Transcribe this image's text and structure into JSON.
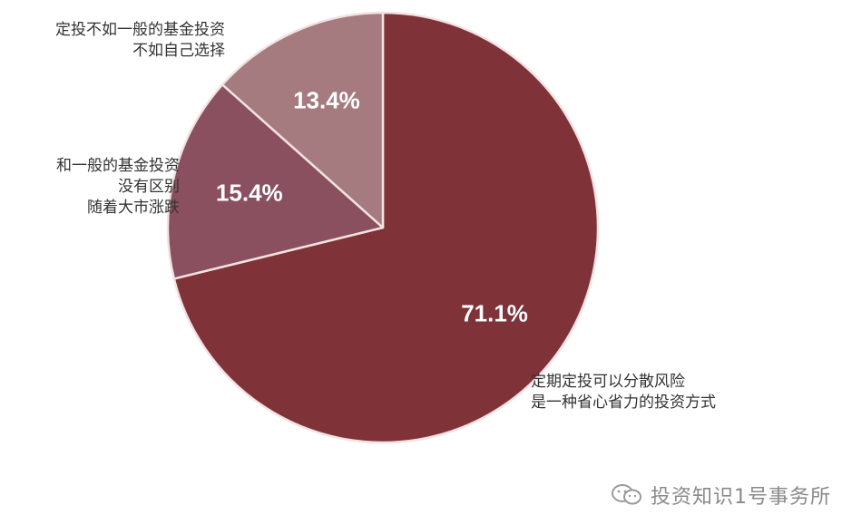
{
  "chart_data": {
    "type": "pie",
    "slices": [
      {
        "value": 71.1,
        "value_label": "71.1%",
        "label_lines": [
          "定期定投可以分散风险",
          "是一种省心省力的投资方式"
        ],
        "color": "#7f3237"
      },
      {
        "value": 15.4,
        "value_label": "15.4%",
        "label_lines": [
          "和一般的基金投资",
          "没有区别",
          "随着大市涨跌"
        ],
        "color": "#8b5060"
      },
      {
        "value": 13.4,
        "value_label": "13.4%",
        "label_lines": [
          "定投不如一般的基金投资",
          "不如自己选择"
        ],
        "color": "#a57b7f"
      }
    ],
    "start_angle_deg": 0,
    "direction": "clockwise",
    "slice_border_color": "#f2e2e2"
  },
  "watermark": {
    "text": "投资知识1号事务所",
    "icon": "wechat-icon"
  }
}
